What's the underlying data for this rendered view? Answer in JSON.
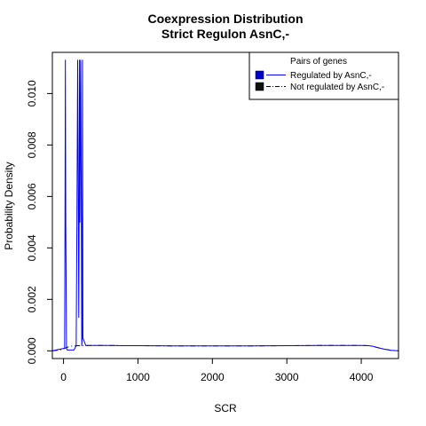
{
  "chart_data": {
    "type": "line",
    "title": "Coexpression Distribution",
    "subtitle": "Strict Regulon AsnC,-",
    "xlabel": "SCR",
    "ylabel": "Probability Density",
    "xlim": [
      -150,
      4500
    ],
    "ylim": [
      -0.0003,
      0.0116
    ],
    "x_ticks": [
      0,
      1000,
      2000,
      3000,
      4000
    ],
    "x_tick_labels": [
      "0",
      "1000",
      "2000",
      "3000",
      "4000"
    ],
    "y_ticks": [
      0.0,
      0.002,
      0.004,
      0.006,
      0.008,
      0.01
    ],
    "y_tick_labels": [
      "0.000",
      "0.002",
      "0.004",
      "0.006",
      "0.008",
      "0.010"
    ],
    "grid": false,
    "legend": {
      "title": "Pairs of genes",
      "position": "top-right",
      "entries": [
        "Regulated by  AsnC,-",
        "Not regulated by  AsnC,-"
      ]
    },
    "series": [
      {
        "name": "Regulated by  AsnC,-",
        "color": "#0000ff",
        "style": "solid",
        "x": [
          -150,
          15,
          20,
          25,
          30,
          40,
          50,
          100,
          140,
          170,
          180,
          190,
          200,
          205,
          210,
          215,
          220,
          230,
          240,
          245,
          250,
          255,
          260,
          300,
          400,
          600,
          800,
          1000,
          1500,
          2000,
          2500,
          3000,
          3500,
          4000,
          4100,
          4150,
          4200,
          4300,
          4400,
          4450,
          4500
        ],
        "y": [
          0,
          0.0001,
          0.005,
          0.0113,
          0.005,
          0.0001,
          3e-05,
          3e-05,
          3e-05,
          0.0002,
          0.005,
          0.0113,
          0.005,
          0.0013,
          0.005,
          0.0113,
          0.005,
          0.0113,
          0.005,
          0.0002,
          0.0005,
          0.0113,
          0.0005,
          0.0002,
          0.00021,
          0.00021,
          0.0002,
          0.0002,
          0.00019,
          0.00019,
          0.00019,
          0.0002,
          0.00021,
          0.00021,
          0.0002,
          0.00018,
          0.00014,
          7e-05,
          2e-05,
          1e-05,
          0
        ]
      },
      {
        "name": "Not regulated by  AsnC,-",
        "color": "#000000",
        "style": "dashdot",
        "x": [
          -150,
          -50,
          0,
          50,
          100,
          200,
          300,
          400,
          600,
          800,
          1000,
          1500,
          2000,
          2500,
          3000,
          3500,
          4000,
          4100,
          4150,
          4200,
          4300,
          4400,
          4450,
          4500
        ],
        "y": [
          0,
          3e-05,
          8e-05,
          0.00014,
          0.00018,
          0.0002,
          0.00021,
          0.00021,
          0.00021,
          0.0002,
          0.0002,
          0.00019,
          0.00019,
          0.00019,
          0.0002,
          0.00021,
          0.00021,
          0.0002,
          0.00018,
          0.00014,
          7e-05,
          2e-05,
          1e-05,
          0
        ]
      }
    ]
  }
}
